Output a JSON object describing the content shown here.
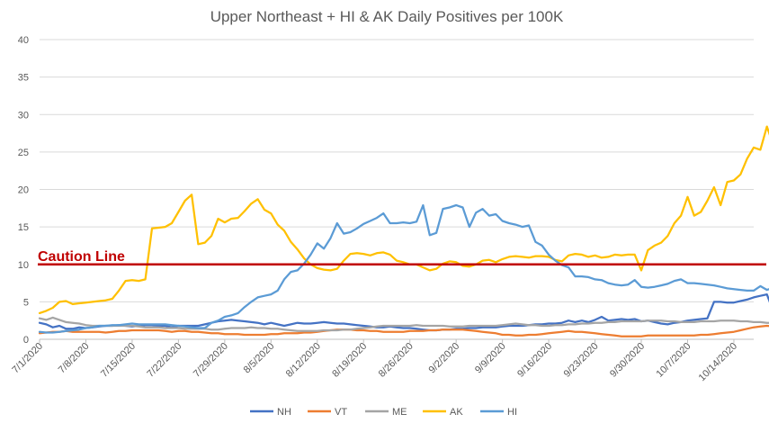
{
  "chart_data": {
    "type": "line",
    "title": "Upper Northeast + HI & AK Daily Positives per 100K",
    "xlabel": "",
    "ylabel": "",
    "ylim": [
      0,
      40
    ],
    "yticks": [
      0,
      5,
      10,
      15,
      20,
      25,
      30,
      35,
      40
    ],
    "x_start": "2020-07-01",
    "x_end": "2020-10-17",
    "xtick_labels": [
      "7/1/2020",
      "7/8/2020",
      "7/15/2020",
      "7/22/2020",
      "7/29/2020",
      "8/5/2020",
      "8/12/2020",
      "8/19/2020",
      "8/26/2020",
      "9/2/2020",
      "9/9/2020",
      "9/16/2020",
      "9/23/2020",
      "9/30/2020",
      "10/7/2020",
      "10/14/2020"
    ],
    "grid": true,
    "legend_position": "bottom",
    "annotation": {
      "label": "Caution Line",
      "value": 10,
      "color": "#C00000"
    },
    "series": [
      {
        "name": "NH",
        "color": "#4472C4",
        "values": [
          2.2,
          2.0,
          1.6,
          1.8,
          1.4,
          1.4,
          1.6,
          1.5,
          1.6,
          1.7,
          1.8,
          1.8,
          1.9,
          1.8,
          1.7,
          1.8,
          1.9,
          1.9,
          1.8,
          1.8,
          1.6,
          1.8,
          1.8,
          1.8,
          1.8,
          2.0,
          2.2,
          2.4,
          2.5,
          2.6,
          2.5,
          2.4,
          2.3,
          2.2,
          2.0,
          2.2,
          2.0,
          1.8,
          2.0,
          2.2,
          2.1,
          2.1,
          2.2,
          2.3,
          2.2,
          2.1,
          2.1,
          2.0,
          1.9,
          1.8,
          1.7,
          1.6,
          1.6,
          1.7,
          1.6,
          1.5,
          1.5,
          1.4,
          1.3,
          1.2,
          1.2,
          1.3,
          1.3,
          1.4,
          1.4,
          1.5,
          1.5,
          1.6,
          1.6,
          1.6,
          1.7,
          1.8,
          1.8,
          1.8,
          1.9,
          2.0,
          2.0,
          2.1,
          2.1,
          2.2,
          2.5,
          2.3,
          2.5,
          2.3,
          2.6,
          3.0,
          2.5,
          2.6,
          2.7,
          2.6,
          2.7,
          2.4,
          2.5,
          2.3,
          2.1,
          2.0,
          2.2,
          2.3,
          2.5,
          2.6,
          2.7,
          2.8,
          5.0,
          5.0,
          4.9,
          4.9,
          5.1,
          5.3,
          5.6,
          5.8,
          6.0,
          3.6,
          4.8,
          4.8,
          4.7,
          5.6,
          5.8,
          5.8,
          5.9,
          6.7
        ]
      },
      {
        "name": "VT",
        "color": "#ED7D31",
        "values": [
          0.8,
          0.9,
          1.0,
          1.0,
          1.1,
          1.0,
          1.0,
          1.0,
          1.0,
          1.0,
          0.9,
          1.0,
          1.1,
          1.1,
          1.2,
          1.2,
          1.2,
          1.2,
          1.2,
          1.1,
          1.0,
          1.1,
          1.1,
          1.0,
          1.0,
          0.9,
          0.8,
          0.8,
          0.7,
          0.7,
          0.7,
          0.6,
          0.6,
          0.6,
          0.6,
          0.7,
          0.7,
          0.8,
          0.8,
          0.8,
          0.9,
          0.9,
          1.0,
          1.1,
          1.2,
          1.3,
          1.3,
          1.3,
          1.2,
          1.2,
          1.1,
          1.1,
          1.0,
          1.0,
          1.0,
          1.0,
          1.1,
          1.1,
          1.1,
          1.2,
          1.2,
          1.3,
          1.3,
          1.3,
          1.3,
          1.2,
          1.1,
          1.0,
          0.9,
          0.8,
          0.6,
          0.6,
          0.5,
          0.5,
          0.6,
          0.6,
          0.7,
          0.8,
          0.9,
          1.0,
          1.1,
          1.0,
          1.0,
          0.9,
          0.8,
          0.7,
          0.6,
          0.5,
          0.4,
          0.4,
          0.4,
          0.4,
          0.5,
          0.5,
          0.5,
          0.5,
          0.5,
          0.5,
          0.5,
          0.5,
          0.6,
          0.6,
          0.7,
          0.8,
          0.9,
          1.0,
          1.2,
          1.4,
          1.6,
          1.7,
          1.8,
          1.7,
          1.5,
          1.4,
          1.3,
          1.4,
          1.5,
          1.5,
          1.6,
          1.6
        ]
      },
      {
        "name": "ME",
        "color": "#A5A5A5",
        "values": [
          2.8,
          2.6,
          2.9,
          2.6,
          2.3,
          2.2,
          2.1,
          1.9,
          1.8,
          1.8,
          1.8,
          1.8,
          1.8,
          1.8,
          1.8,
          1.7,
          1.6,
          1.6,
          1.6,
          1.5,
          1.5,
          1.5,
          1.4,
          1.4,
          1.4,
          1.4,
          1.3,
          1.3,
          1.4,
          1.5,
          1.5,
          1.5,
          1.6,
          1.5,
          1.5,
          1.4,
          1.4,
          1.3,
          1.2,
          1.1,
          1.1,
          1.1,
          1.1,
          1.2,
          1.2,
          1.2,
          1.3,
          1.3,
          1.4,
          1.5,
          1.6,
          1.7,
          1.8,
          1.8,
          1.8,
          1.8,
          1.8,
          1.9,
          1.8,
          1.8,
          1.8,
          1.8,
          1.7,
          1.7,
          1.7,
          1.8,
          1.8,
          1.8,
          1.8,
          1.8,
          1.9,
          2.0,
          2.1,
          2.0,
          1.9,
          1.9,
          1.8,
          1.8,
          1.9,
          1.9,
          2.0,
          2.0,
          2.1,
          2.1,
          2.2,
          2.2,
          2.3,
          2.3,
          2.4,
          2.4,
          2.4,
          2.4,
          2.5,
          2.5,
          2.5,
          2.4,
          2.4,
          2.3,
          2.3,
          2.3,
          2.4,
          2.4,
          2.4,
          2.5,
          2.5,
          2.5,
          2.4,
          2.4,
          2.3,
          2.3,
          2.2,
          2.2,
          2.2,
          2.2,
          2.2,
          2.3,
          2.3,
          2.2,
          2.1,
          2.1
        ]
      },
      {
        "name": "AK",
        "color": "#FFC000",
        "values": [
          3.5,
          3.8,
          4.2,
          5.0,
          5.1,
          4.7,
          4.8,
          4.9,
          5.0,
          5.1,
          5.2,
          5.4,
          6.5,
          7.8,
          7.9,
          7.8,
          8.0,
          14.8,
          14.9,
          15.0,
          15.5,
          17.0,
          18.5,
          19.3,
          12.7,
          12.9,
          13.8,
          16.1,
          15.6,
          16.1,
          16.2,
          17.1,
          18.1,
          18.7,
          17.3,
          16.8,
          15.3,
          14.5,
          13.0,
          12.0,
          10.8,
          10.0,
          9.5,
          9.3,
          9.2,
          9.4,
          10.5,
          11.4,
          11.5,
          11.4,
          11.2,
          11.5,
          11.6,
          11.3,
          10.5,
          10.3,
          10.0,
          10.0,
          9.6,
          9.2,
          9.4,
          10.1,
          10.4,
          10.3,
          9.8,
          9.7,
          10.0,
          10.5,
          10.6,
          10.3,
          10.7,
          11.0,
          11.1,
          11.0,
          10.9,
          11.1,
          11.1,
          11.0,
          10.6,
          10.4,
          11.2,
          11.4,
          11.3,
          11.0,
          11.2,
          10.9,
          11.0,
          11.3,
          11.2,
          11.3,
          11.3,
          9.2,
          11.9,
          12.5,
          12.9,
          13.8,
          15.5,
          16.5,
          19.0,
          16.5,
          17.0,
          18.5,
          20.3,
          17.9,
          21.0,
          21.2,
          22.0,
          24.1,
          25.6,
          25.3,
          28.4,
          25.8,
          26.3,
          27.4
        ]
      },
      {
        "name": "HI",
        "color": "#5B9BD5",
        "values": [
          1.0,
          0.9,
          0.9,
          1.0,
          1.1,
          1.2,
          1.3,
          1.5,
          1.6,
          1.8,
          1.8,
          1.9,
          1.9,
          2.0,
          2.1,
          2.0,
          2.0,
          2.0,
          2.0,
          2.0,
          1.9,
          1.8,
          1.7,
          1.6,
          1.5,
          1.5,
          2.2,
          2.5,
          3.0,
          3.2,
          3.5,
          4.3,
          5.0,
          5.6,
          5.8,
          6.0,
          6.5,
          8.0,
          9.0,
          9.2,
          10.1,
          11.3,
          12.8,
          12.1,
          13.5,
          15.5,
          14.1,
          14.3,
          14.8,
          15.4,
          15.8,
          16.2,
          16.8,
          15.5,
          15.5,
          15.6,
          15.5,
          15.7,
          17.9,
          13.9,
          14.2,
          17.4,
          17.6,
          17.9,
          17.6,
          15.0,
          16.9,
          17.4,
          16.5,
          16.7,
          15.8,
          15.5,
          15.3,
          15.0,
          15.2,
          13.0,
          12.5,
          11.3,
          10.5,
          9.9,
          9.6,
          8.4,
          8.4,
          8.3,
          8.0,
          7.9,
          7.5,
          7.3,
          7.2,
          7.3,
          7.9,
          7.0,
          6.9,
          7.0,
          7.2,
          7.4,
          7.8,
          8.0,
          7.5,
          7.5,
          7.4,
          7.3,
          7.2,
          7.0,
          6.8,
          6.7,
          6.6,
          6.5,
          6.5,
          7.1,
          6.6,
          6.9,
          6.9,
          6.6,
          6.5,
          6.4
        ]
      }
    ]
  }
}
